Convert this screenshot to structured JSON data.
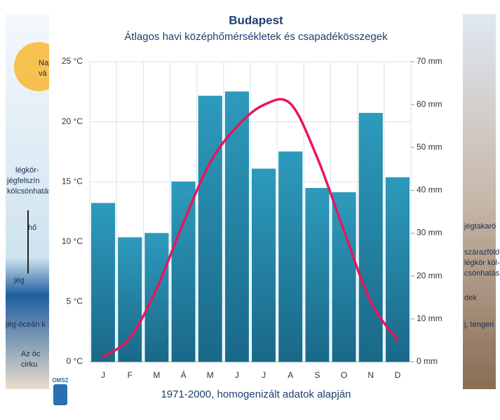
{
  "chart_data": {
    "type": "climate",
    "title": "Budapest",
    "subtitle": "Átlagos havi középhőmérsékletek és csapadékösszegek",
    "footer": "1971-2000, homogenizált adatok alapján",
    "logo": "OMSZ",
    "categories": [
      "J",
      "F",
      "M",
      "Á",
      "M",
      "J",
      "J",
      "A",
      "S",
      "O",
      "N",
      "D"
    ],
    "series": [
      {
        "type": "bar",
        "axis": "y2",
        "color": "#2385a8",
        "values": [
          37,
          29,
          30,
          42,
          62,
          63,
          45,
          49,
          40.5,
          39.5,
          58,
          43
        ]
      },
      {
        "type": "line",
        "axis": "y",
        "color": "#e8155e",
        "values": [
          0.4,
          2.0,
          6.1,
          11.6,
          16.6,
          19.6,
          21.4,
          21.5,
          17.0,
          10.9,
          5.0,
          1.8
        ]
      }
    ],
    "ylim": [
      0,
      25
    ],
    "yticks": [
      {
        "value": 0,
        "label": "0 °C"
      },
      {
        "value": 5,
        "label": "5 °C"
      },
      {
        "value": 10,
        "label": "10 °C"
      },
      {
        "value": 15,
        "label": "15 °C"
      },
      {
        "value": 20,
        "label": "20 °C"
      },
      {
        "value": 25,
        "label": "25 °C"
      }
    ],
    "y2lim": [
      0,
      70
    ],
    "y2ticks": [
      {
        "value": 0,
        "label": "0 mm"
      },
      {
        "value": 10,
        "label": "10 mm"
      },
      {
        "value": 20,
        "label": "20 mm"
      },
      {
        "value": 30,
        "label": "30 mm"
      },
      {
        "value": 40,
        "label": "40 mm"
      },
      {
        "value": 50,
        "label": "50 mm"
      },
      {
        "value": 60,
        "label": "60 mm"
      },
      {
        "value": 70,
        "label": "70 mm"
      }
    ],
    "grid": true
  },
  "background": {
    "left": [
      "Nap",
      "vá",
      "légkör-",
      "jégfelszín",
      "kölcsönhatás",
      "hő",
      "jég",
      "jég-óceán k",
      "Az óc",
      "cirku"
    ],
    "right": [
      "jégtakaró",
      "szárazföld-",
      "légkör köl-",
      "csönhatás",
      "dek",
      "j, tengeri"
    ]
  }
}
